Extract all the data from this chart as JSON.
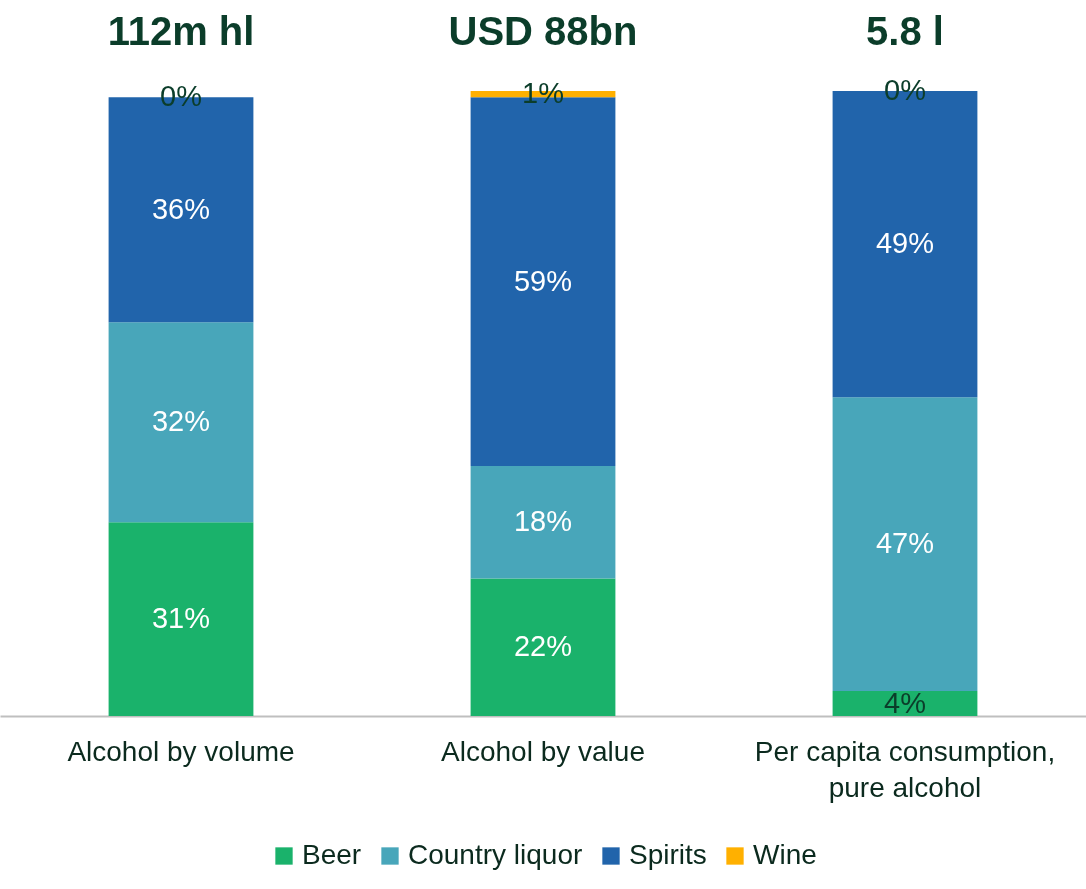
{
  "chart_data": {
    "type": "bar",
    "stacked": true,
    "categories": [
      "Alcohol by volume",
      "Alcohol by value",
      "Per capita consumption, pure alcohol"
    ],
    "series": [
      {
        "name": "Beer",
        "color": "#1ab26b",
        "values": [
          31,
          22,
          4
        ],
        "value_labels": [
          "31%",
          "22%",
          "4%"
        ]
      },
      {
        "name": "Country liquor",
        "color": "#48a6ba",
        "values": [
          32,
          18,
          47
        ],
        "value_labels": [
          "32%",
          "18%",
          "47%"
        ]
      },
      {
        "name": "Spirits",
        "color": "#2164ab",
        "values": [
          36,
          59,
          49
        ],
        "value_labels": [
          "36%",
          "59%",
          "49%"
        ]
      },
      {
        "name": "Wine",
        "color": "#ffb000",
        "values": [
          0,
          1,
          0
        ],
        "value_labels": [
          "0%",
          "1%",
          "0%"
        ]
      }
    ],
    "annotations": [
      "112m hl",
      "USD 88bn",
      "5.8 l"
    ],
    "legend": "bottom",
    "grid": false,
    "tick_labels": "x"
  }
}
